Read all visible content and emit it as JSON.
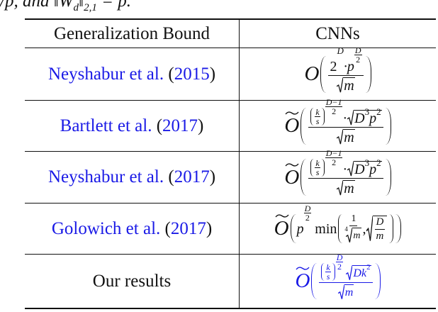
{
  "caption_fragment": [
    "/p, and ‖W",
    "d",
    "‖",
    "2,1",
    " = p."
  ],
  "table": {
    "header": [
      "Generalization Bound",
      "CNNs"
    ],
    "cite_open": "(",
    "cite_close": ")",
    "rows": [
      {
        "author": "Neyshabur et al.",
        "year": "2015",
        "bound": [
          "O",
          "2",
          "D",
          "·p",
          "D",
          "2",
          "m"
        ]
      },
      {
        "author": "Bartlett et al.",
        "year": "2017",
        "bound": [
          "O",
          "k",
          "s",
          "D−1",
          "2",
          "·",
          "D",
          "3",
          "p",
          "2",
          "m"
        ]
      },
      {
        "author": "Neyshabur et al.",
        "year": "2017",
        "bound": [
          "O",
          "k",
          "s",
          "D−1",
          "2",
          "·",
          "D",
          "3",
          "p",
          "2",
          "m"
        ]
      },
      {
        "author": "Golowich et al.",
        "year": "2017",
        "bound": [
          "O",
          "p",
          "D",
          "2",
          "min",
          "1",
          "4",
          "m",
          ",",
          "D",
          "m"
        ]
      },
      {
        "author": "Our results",
        "year": null,
        "bound": [
          "O",
          "k",
          "s",
          "D",
          "2",
          "D",
          "k",
          "2",
          "m"
        ]
      }
    ]
  }
}
